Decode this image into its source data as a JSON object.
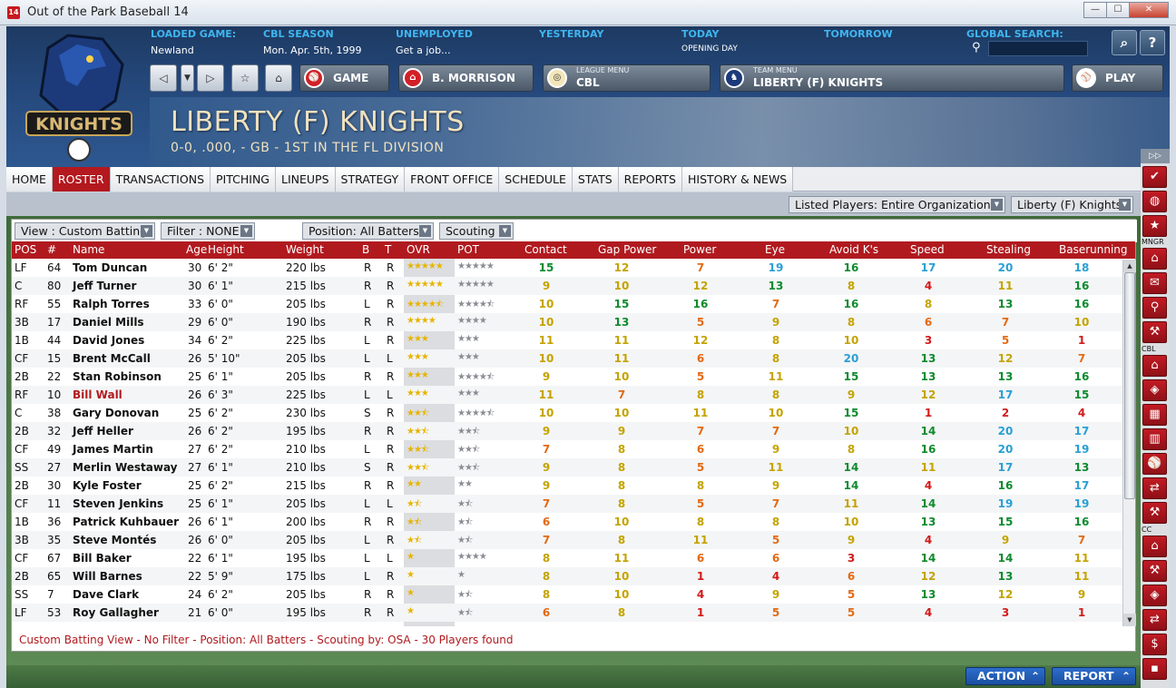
{
  "window": {
    "title": "Out of the Park Baseball 14",
    "icon_text": "14",
    "min": "—",
    "max": "☐",
    "close": "✕"
  },
  "header": {
    "loaded_game_label": "LOADED GAME:",
    "loaded_game": "Newland",
    "season_label": "CBL SEASON",
    "season_date": "Mon. Apr. 5th, 1999",
    "unemployed_label": "UNEMPLOYED",
    "unemployed_value": "Get a job...",
    "yesterday_label": "YESTERDAY",
    "today_label": "TODAY",
    "today_value": "OPENING DAY",
    "tomorrow_label": "TOMORROW",
    "global_search_label": "GLOBAL SEARCH:"
  },
  "navbuttons": {
    "game": "GAME",
    "manager": "B. MORRISON",
    "league_menu_small": "LEAGUE MENU",
    "league_menu": "CBL",
    "team_menu_small": "TEAM MENU",
    "team_menu": "LIBERTY (F) KNIGHTS",
    "play": "PLAY"
  },
  "team": {
    "title": "LIBERTY (F) KNIGHTS",
    "subtitle": "0-0, .000, - GB - 1ST IN THE FL DIVISION",
    "logo_text": "KNIGHTS"
  },
  "tabs": [
    "HOME",
    "ROSTER",
    "TRANSACTIONS",
    "PITCHING",
    "LINEUPS",
    "STRATEGY",
    "FRONT OFFICE",
    "SCHEDULE",
    "STATS",
    "REPORTS",
    "HISTORY & NEWS"
  ],
  "filters": {
    "listed": "Listed Players: Entire Organization",
    "team": "Liberty (F) Knights",
    "view": "View : Custom Batting",
    "filter": "Filter : NONE",
    "position": "Position: All Batters",
    "scouting": "Scouting"
  },
  "columns": [
    "POS",
    "#",
    "Name",
    "Age",
    "Height",
    "Weight",
    "B",
    "T",
    "OVR",
    "POT",
    "Contact",
    "Gap Power",
    "Power",
    "Eye",
    "Avoid K's",
    "Speed",
    "Stealing",
    "Baserunning"
  ],
  "players": [
    {
      "pos": "LF",
      "num": "64",
      "name": "Tom Duncan",
      "age": "30",
      "height": "6' 2\"",
      "weight": "220 lbs",
      "b": "R",
      "t": "R",
      "ovr": 5,
      "pot": 5,
      "r": [
        15,
        12,
        7,
        19,
        16,
        17,
        20,
        18
      ]
    },
    {
      "pos": "C",
      "num": "80",
      "name": "Jeff Turner",
      "age": "30",
      "height": "6' 1\"",
      "weight": "215 lbs",
      "b": "R",
      "t": "R",
      "ovr": 5,
      "pot": 5,
      "r": [
        9,
        10,
        12,
        13,
        8,
        4,
        11,
        16
      ]
    },
    {
      "pos": "RF",
      "num": "55",
      "name": "Ralph Torres",
      "age": "33",
      "height": "6' 0\"",
      "weight": "205 lbs",
      "b": "L",
      "t": "R",
      "ovr": 4.5,
      "pot": 4.5,
      "r": [
        10,
        15,
        16,
        7,
        16,
        8,
        13,
        16
      ]
    },
    {
      "pos": "3B",
      "num": "17",
      "name": "Daniel Mills",
      "age": "29",
      "height": "6' 0\"",
      "weight": "190 lbs",
      "b": "R",
      "t": "R",
      "ovr": 4,
      "pot": 4,
      "r": [
        10,
        13,
        5,
        9,
        8,
        6,
        7,
        10
      ]
    },
    {
      "pos": "1B",
      "num": "44",
      "name": "David Jones",
      "age": "34",
      "height": "6' 2\"",
      "weight": "225 lbs",
      "b": "L",
      "t": "R",
      "ovr": 3,
      "pot": 3,
      "r": [
        11,
        11,
        12,
        8,
        10,
        3,
        5,
        1
      ]
    },
    {
      "pos": "CF",
      "num": "15",
      "name": "Brent McCall",
      "age": "26",
      "height": "5' 10\"",
      "weight": "205 lbs",
      "b": "L",
      "t": "L",
      "ovr": 3,
      "pot": 3,
      "r": [
        10,
        11,
        6,
        8,
        20,
        13,
        12,
        7
      ]
    },
    {
      "pos": "2B",
      "num": "22",
      "name": "Stan Robinson",
      "age": "25",
      "height": "6' 1\"",
      "weight": "205 lbs",
      "b": "R",
      "t": "R",
      "ovr": 3,
      "pot": 4.5,
      "r": [
        9,
        10,
        5,
        11,
        15,
        13,
        13,
        16
      ]
    },
    {
      "pos": "RF",
      "num": "10",
      "name": "Bill Wall",
      "age": "26",
      "height": "6' 3\"",
      "weight": "225 lbs",
      "b": "L",
      "t": "L",
      "ovr": 3,
      "pot": 3,
      "r": [
        11,
        7,
        8,
        8,
        9,
        12,
        17,
        15
      ],
      "injured": true
    },
    {
      "pos": "C",
      "num": "38",
      "name": "Gary Donovan",
      "age": "25",
      "height": "6' 2\"",
      "weight": "230 lbs",
      "b": "S",
      "t": "R",
      "ovr": 2.5,
      "pot": 4.5,
      "r": [
        10,
        10,
        11,
        10,
        15,
        1,
        2,
        4
      ]
    },
    {
      "pos": "2B",
      "num": "32",
      "name": "Jeff Heller",
      "age": "26",
      "height": "6' 2\"",
      "weight": "195 lbs",
      "b": "R",
      "t": "R",
      "ovr": 2.5,
      "pot": 2.5,
      "r": [
        9,
        9,
        7,
        7,
        10,
        14,
        20,
        17
      ]
    },
    {
      "pos": "CF",
      "num": "49",
      "name": "James Martin",
      "age": "27",
      "height": "6' 2\"",
      "weight": "210 lbs",
      "b": "L",
      "t": "R",
      "ovr": 2.5,
      "pot": 2.5,
      "r": [
        7,
        8,
        6,
        9,
        8,
        16,
        20,
        19
      ]
    },
    {
      "pos": "SS",
      "num": "27",
      "name": "Merlin Westaway",
      "age": "27",
      "height": "6' 1\"",
      "weight": "210 lbs",
      "b": "S",
      "t": "R",
      "ovr": 2.5,
      "pot": 2.5,
      "r": [
        9,
        8,
        5,
        11,
        14,
        11,
        17,
        13
      ]
    },
    {
      "pos": "2B",
      "num": "30",
      "name": "Kyle Foster",
      "age": "25",
      "height": "6' 2\"",
      "weight": "215 lbs",
      "b": "R",
      "t": "R",
      "ovr": 2,
      "pot": 2,
      "r": [
        9,
        8,
        8,
        9,
        14,
        4,
        16,
        17
      ]
    },
    {
      "pos": "CF",
      "num": "11",
      "name": "Steven Jenkins",
      "age": "25",
      "height": "6' 1\"",
      "weight": "205 lbs",
      "b": "L",
      "t": "L",
      "ovr": 1.5,
      "pot": 1.5,
      "r": [
        7,
        8,
        5,
        7,
        11,
        14,
        19,
        19
      ]
    },
    {
      "pos": "1B",
      "num": "36",
      "name": "Patrick Kuhbauer",
      "age": "26",
      "height": "6' 1\"",
      "weight": "200 lbs",
      "b": "R",
      "t": "R",
      "ovr": 1.5,
      "pot": 1.5,
      "r": [
        6,
        10,
        8,
        8,
        10,
        13,
        15,
        16
      ]
    },
    {
      "pos": "3B",
      "num": "35",
      "name": "Steve Montés",
      "age": "26",
      "height": "6' 0\"",
      "weight": "205 lbs",
      "b": "L",
      "t": "R",
      "ovr": 1.5,
      "pot": 1.5,
      "r": [
        7,
        8,
        11,
        5,
        9,
        4,
        9,
        7
      ]
    },
    {
      "pos": "CF",
      "num": "67",
      "name": "Bill Baker",
      "age": "22",
      "height": "6' 1\"",
      "weight": "195 lbs",
      "b": "L",
      "t": "L",
      "ovr": 1,
      "pot": 4,
      "r": [
        8,
        11,
        6,
        6,
        3,
        14,
        14,
        11
      ]
    },
    {
      "pos": "2B",
      "num": "65",
      "name": "Will Barnes",
      "age": "22",
      "height": "5' 9\"",
      "weight": "175 lbs",
      "b": "L",
      "t": "R",
      "ovr": 1,
      "pot": 1,
      "r": [
        8,
        10,
        1,
        4,
        6,
        12,
        13,
        11
      ]
    },
    {
      "pos": "SS",
      "num": "7",
      "name": "Dave Clark",
      "age": "24",
      "height": "6' 2\"",
      "weight": "205 lbs",
      "b": "R",
      "t": "R",
      "ovr": 1,
      "pot": 1.5,
      "r": [
        8,
        10,
        4,
        9,
        5,
        13,
        12,
        9
      ]
    },
    {
      "pos": "LF",
      "num": "53",
      "name": "Roy Gallagher",
      "age": "21",
      "height": "6' 0\"",
      "weight": "195 lbs",
      "b": "R",
      "t": "R",
      "ovr": 1,
      "pot": 1.5,
      "r": [
        6,
        8,
        1,
        5,
        5,
        4,
        3,
        1
      ]
    }
  ],
  "status_text": "Custom Batting View - No Filter - Position: All Batters - Scouting by: OSA - 30 Players found",
  "bottom": {
    "action": "ACTION",
    "report": "REPORT"
  },
  "sidebar": {
    "mngr": "MNGR",
    "cbl": "CBL",
    "cc": "CC"
  },
  "colors": {
    "accent_red": "#b01a1f",
    "rating_elite": "#2a9fd6",
    "rating_good": "#0e8a2e",
    "rating_mid": "#c4a300",
    "rating_low": "#e36a14",
    "rating_bad": "#d31a1a"
  }
}
